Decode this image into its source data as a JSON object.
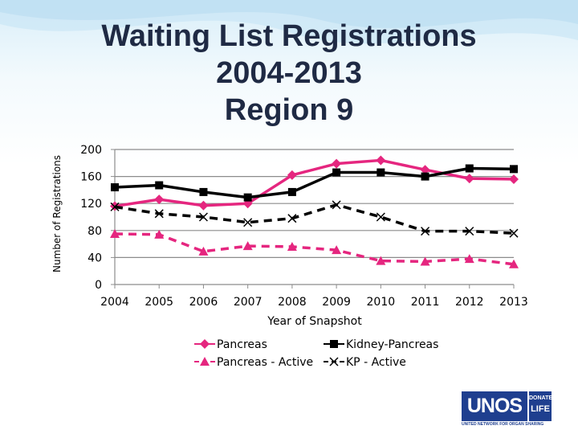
{
  "slide": {
    "title_lines": [
      "Waiting List Registrations",
      "2004-2013",
      "Region 9"
    ]
  },
  "logo": {
    "main": "UNOS",
    "side_top": "DONATE",
    "side_bottom": "LIFE",
    "tagline": "UNITED NETWORK FOR ORGAN SHARING"
  },
  "chart_data": {
    "type": "line",
    "title": "Waiting List Registrations 2004-2013 Region 9",
    "xlabel": "Year of Snapshot",
    "ylabel": "Number of Registrations",
    "categories": [
      "2004",
      "2005",
      "2006",
      "2007",
      "2008",
      "2009",
      "2010",
      "2011",
      "2012",
      "2013"
    ],
    "ylim": [
      0,
      200
    ],
    "yticks": [
      0,
      40,
      80,
      120,
      160,
      200
    ],
    "grid": true,
    "legend_position": "bottom",
    "series": [
      {
        "name": "Pancreas",
        "color": "#e5267f",
        "marker": "diamond",
        "dash": "solid",
        "values": [
          116,
          126,
          117,
          120,
          162,
          179,
          184,
          170,
          157,
          156
        ]
      },
      {
        "name": "Kidney-Pancreas",
        "color": "#000000",
        "marker": "square",
        "dash": "solid",
        "values": [
          144,
          147,
          137,
          129,
          137,
          166,
          166,
          160,
          172,
          171
        ]
      },
      {
        "name": "Pancreas - Active",
        "color": "#e5267f",
        "marker": "triangle",
        "dash": "dashed",
        "values": [
          75,
          74,
          49,
          57,
          56,
          51,
          35,
          34,
          38,
          30
        ]
      },
      {
        "name": "KP - Active",
        "color": "#000000",
        "marker": "x",
        "dash": "dashed",
        "values": [
          115,
          105,
          100,
          92,
          98,
          118,
          100,
          79,
          79,
          76
        ]
      }
    ]
  }
}
